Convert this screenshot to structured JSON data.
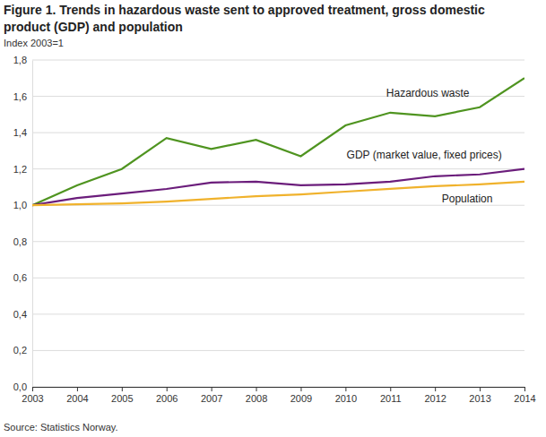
{
  "chart_data": {
    "type": "line",
    "title": "Figure 1. Trends in hazardous waste sent to approved treatment, gross domestic product (GDP) and population",
    "y_label": "Index 2003=1",
    "source": "Source: Statistics Norway.",
    "x": [
      2003,
      2004,
      2005,
      2006,
      2007,
      2008,
      2009,
      2010,
      2011,
      2012,
      2013,
      2014
    ],
    "series": [
      {
        "name": "Hazardous waste",
        "color": "#4f9420",
        "values": [
          1.0,
          1.11,
          1.2,
          1.37,
          1.31,
          1.36,
          1.27,
          1.44,
          1.51,
          1.49,
          1.54,
          1.7
        ]
      },
      {
        "name": "GDP (market value, fixed prices)",
        "color": "#6b1d7b",
        "values": [
          1.0,
          1.04,
          1.065,
          1.09,
          1.125,
          1.13,
          1.11,
          1.115,
          1.13,
          1.16,
          1.17,
          1.2
        ]
      },
      {
        "name": "Population",
        "color": "#f0b22c",
        "values": [
          1.0,
          1.005,
          1.01,
          1.02,
          1.035,
          1.05,
          1.06,
          1.075,
          1.09,
          1.105,
          1.115,
          1.13
        ]
      }
    ],
    "xlim": [
      2003,
      2014
    ],
    "xticks": [
      2003,
      2004,
      2005,
      2006,
      2007,
      2008,
      2009,
      2010,
      2011,
      2012,
      2013,
      2014
    ],
    "ylim": [
      0,
      1.8
    ],
    "yticks": [
      {
        "value": 0,
        "label": "0,0"
      },
      {
        "value": 0.2,
        "label": "0,2"
      },
      {
        "value": 0.4,
        "label": "0,4"
      },
      {
        "value": 0.6,
        "label": "0,6"
      },
      {
        "value": 0.8,
        "label": "0,8"
      },
      {
        "value": 1.0,
        "label": "1,0"
      },
      {
        "value": 1.2,
        "label": "1,2"
      },
      {
        "value": 1.4,
        "label": "1,4"
      },
      {
        "value": 1.6,
        "label": "1,6"
      },
      {
        "value": 1.8,
        "label": "1,8"
      }
    ],
    "grid": true
  }
}
